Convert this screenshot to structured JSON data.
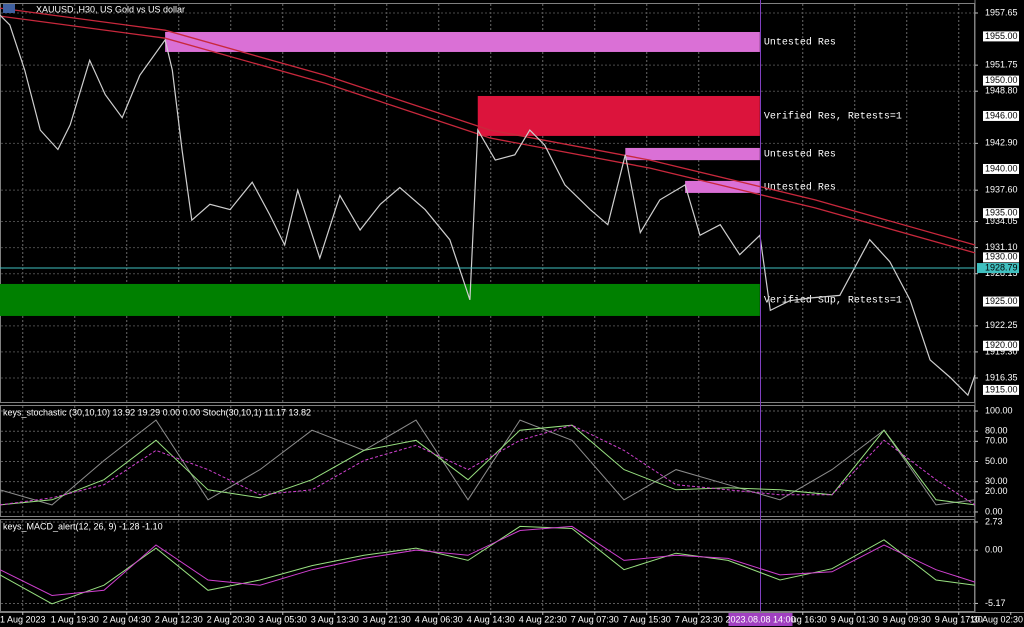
{
  "chart_data": [
    {
      "type": "line",
      "title": "XAUUSD.,H30, US Gold vs US dollar",
      "x": [
        0,
        1.5,
        3.8,
        6.2,
        8.9,
        10.8,
        13.8,
        16.2,
        18.8,
        21.5,
        25.4,
        26.5,
        28,
        29.5,
        32.3,
        35.4,
        38.8,
        41.5,
        43.8,
        45.8,
        49.2,
        52.3,
        55.4,
        58.5,
        61.5,
        65.4,
        69.2,
        72.3,
        73.5,
        76.2,
        79.2,
        81.5,
        83.8,
        86.9,
        90.8,
        93.5,
        96.2,
        98.5,
        101.5,
        105.4,
        107.7,
        110.8,
        113.8,
        116.9,
        118.5,
        121.5,
        124.6,
        129.2,
        133.8,
        136.9,
        140,
        143.1,
        146.2,
        148.9,
        150
      ],
      "values": [
        1957.4,
        1956.3,
        1951.2,
        1944.4,
        1942.2,
        1945.0,
        1952.3,
        1948.4,
        1945.8,
        1950.6,
        1954.6,
        1951.2,
        1942.2,
        1934.2,
        1936.0,
        1935.4,
        1938.5,
        1934.8,
        1931.4,
        1937.6,
        1929.9,
        1937.0,
        1933.1,
        1936.0,
        1937.9,
        1935.4,
        1932.0,
        1925.2,
        1944.4,
        1941.0,
        1941.6,
        1944.4,
        1942.7,
        1938.2,
        1935.4,
        1933.7,
        1941.6,
        1932.8,
        1936.5,
        1938.2,
        1932.5,
        1933.7,
        1930.3,
        1932.5,
        1924.0,
        1925.1,
        1925.4,
        1925.7,
        1932.0,
        1929.5,
        1925.2,
        1918.4,
        1916.4,
        1914.4,
        1916.7
      ],
      "color": "#cfcfcf",
      "grid": true,
      "xlim": [
        0,
        150
      ],
      "ylim": [
        1913.52,
        1958.78
      ],
      "yticks": [
        {
          "value": 1957.65,
          "label": "1957.65"
        },
        {
          "value": 1951.75,
          "label": "1951.75"
        },
        {
          "value": 1948.8,
          "label": "1948.80"
        },
        {
          "value": 1942.9,
          "label": "1942.90"
        },
        {
          "value": 1937.6,
          "label": "1937.60"
        },
        {
          "value": 1934.05,
          "label": "1934.05"
        },
        {
          "value": 1931.1,
          "label": "1931.10"
        },
        {
          "value": 1928.15,
          "label": "1928.15"
        },
        {
          "value": 1922.25,
          "label": "1922.25"
        },
        {
          "value": 1919.3,
          "label": "1919.30"
        },
        {
          "value": 1916.35,
          "label": "1916.35"
        }
      ],
      "xticks": [
        {
          "value": 3.5,
          "label": "1 Aug 2023"
        },
        {
          "value": 11.5,
          "label": "1 Aug 19:30"
        },
        {
          "value": 19.5,
          "label": "2 Aug 04:30"
        },
        {
          "value": 27.5,
          "label": "2 Aug 12:30"
        },
        {
          "value": 35.5,
          "label": "2 Aug 20:30"
        },
        {
          "value": 43.5,
          "label": "3 Aug 05:30"
        },
        {
          "value": 51.5,
          "label": "3 Aug 13:30"
        },
        {
          "value": 59.5,
          "label": "3 Aug 21:30"
        },
        {
          "value": 67.5,
          "label": "4 Aug 06:30"
        },
        {
          "value": 75.5,
          "label": "4 Aug 14:30"
        },
        {
          "value": 83.5,
          "label": "4 Aug 22:30"
        },
        {
          "value": 91.5,
          "label": "7 Aug 07:30"
        },
        {
          "value": 99.5,
          "label": "7 Aug 15:30"
        },
        {
          "value": 107.5,
          "label": "7 Aug 23:30"
        },
        {
          "value": 123.5,
          "label": "8 Aug 16:30"
        },
        {
          "value": 131.5,
          "label": "9 Aug 01:30"
        },
        {
          "value": 139.5,
          "label": "9 Aug 09:30"
        },
        {
          "value": 147.5,
          "label": "9 Aug 17:30"
        },
        {
          "value": 155.5,
          "label": "10 Aug 02:30"
        }
      ],
      "levels": [
        {
          "value": 1955,
          "label": "1955.00"
        },
        {
          "value": 1950,
          "label": "1950.00"
        },
        {
          "value": 1946,
          "label": "1946.00"
        },
        {
          "value": 1940,
          "label": "1940.00"
        },
        {
          "value": 1935,
          "label": "1935.00"
        },
        {
          "value": 1930,
          "label": "1930.00"
        },
        {
          "value": 1925,
          "label": "1925.00"
        },
        {
          "value": 1920,
          "label": "1920.00"
        },
        {
          "value": 1915,
          "label": "1915.00"
        }
      ],
      "current_price": {
        "value": 1928.79,
        "label": "1928.79"
      },
      "ma_x": [
        0,
        25.4,
        50,
        75.4,
        100,
        125.4,
        150
      ],
      "ma_lines": [
        {
          "color": "#c8283c",
          "values": [
            1958.2,
            1955.7,
            1950.6,
            1944.4,
            1941.0,
            1936.5,
            1931.4
          ]
        },
        {
          "color": "#c8283c",
          "values": [
            1957.3,
            1954.8,
            1949.7,
            1943.5,
            1940.1,
            1935.6,
            1930.5
          ]
        }
      ],
      "zones": [
        {
          "low": 1953.24,
          "high": 1955.5,
          "x_start": 25.4,
          "x_end": 116.9,
          "color": "#da70d6",
          "label": "Untested Res"
        },
        {
          "low": 1943.74,
          "high": 1948.26,
          "x_start": 73.5,
          "x_end": 116.9,
          "color": "#dc143c",
          "label": "Verified Res, Retests=1"
        },
        {
          "low": 1941.0,
          "high": 1942.38,
          "x_start": 96.2,
          "x_end": 116.9,
          "color": "#da70d6",
          "label": "Untested Res"
        },
        {
          "low": 1937.29,
          "high": 1938.65,
          "x_start": 105.4,
          "x_end": 116.9,
          "color": "#da70d6",
          "label": "Untested Res"
        },
        {
          "low": 1923.37,
          "high": 1926.99,
          "x_start": 0,
          "x_end": 116.9,
          "color": "#008000",
          "label": "Verified Sup, Retests=1"
        }
      ],
      "cursor": {
        "x": 117,
        "label": "2023.08.08 14:00"
      }
    },
    {
      "type": "line",
      "title": "keys_stochastic (30,10,10) 13.92 19.29 0.00 0.00 Stoch(30,10,1) 11.17 13.82",
      "x": [
        0,
        8,
        16,
        24,
        32,
        40,
        48,
        56,
        64,
        72,
        80,
        88,
        96,
        104,
        112,
        120,
        128,
        136,
        144,
        150
      ],
      "xlim": [
        0,
        150
      ],
      "ylim": [
        -5,
        106
      ],
      "yticks": [
        {
          "value": 100,
          "label": "100.00"
        },
        {
          "value": 80,
          "label": "80.00"
        },
        {
          "value": 70,
          "label": "70.00"
        },
        {
          "value": 50,
          "label": "50.00"
        },
        {
          "value": 30,
          "label": "30.00"
        },
        {
          "value": 20,
          "label": "20.00"
        },
        {
          "value": 0,
          "label": "0.00"
        }
      ],
      "series": [
        {
          "color": "#8c8c8c",
          "dash": false,
          "values": [
            22,
            7,
            51,
            91,
            12,
            42,
            81,
            61,
            91,
            12,
            91,
            71,
            12,
            42,
            27,
            12,
            42,
            81,
            7,
            12
          ]
        },
        {
          "color": "#98e080",
          "dash": false,
          "values": [
            7,
            12,
            32,
            71,
            22,
            14,
            32,
            61,
            71,
            32,
            81,
            86,
            42,
            22,
            24,
            22,
            17,
            81,
            12,
            7
          ]
        },
        {
          "color": "#d040d0",
          "dash": true,
          "values": [
            7,
            14,
            27,
            61,
            42,
            17,
            22,
            51,
            66,
            42,
            71,
            86,
            61,
            27,
            22,
            17,
            17,
            71,
            32,
            7
          ]
        }
      ]
    },
    {
      "type": "line",
      "title": "keys_MACD_alert(12, 26, 9) -1.28 -1.10",
      "x": [
        0,
        8,
        16,
        24,
        32,
        40,
        48,
        56,
        64,
        72,
        80,
        88,
        96,
        104,
        112,
        120,
        128,
        136,
        144,
        150
      ],
      "xlim": [
        0,
        150
      ],
      "ylim": [
        -6.0,
        3.02
      ],
      "yticks": [
        2.73,
        {
          "value": 0,
          "label": "0.00"
        },
        -5.17
      ],
      "series": [
        {
          "color": "#98e080",
          "dash": false,
          "values": [
            -2.4,
            -5.2,
            -3.4,
            0.2,
            -3.9,
            -2.9,
            -1.5,
            -0.5,
            0.2,
            -1.0,
            2.3,
            2.1,
            -1.9,
            -0.3,
            -1.0,
            -2.9,
            -1.8,
            1.0,
            -2.9,
            -3.4
          ]
        },
        {
          "color": "#d040d0",
          "dash": false,
          "values": [
            -1.9,
            -4.4,
            -3.9,
            0.5,
            -2.9,
            -3.4,
            -1.9,
            -0.8,
            0,
            -0.5,
            1.9,
            2.3,
            -1.0,
            -0.5,
            -0.8,
            -2.4,
            -2.1,
            0.5,
            -1.9,
            -3.1
          ]
        }
      ]
    }
  ]
}
